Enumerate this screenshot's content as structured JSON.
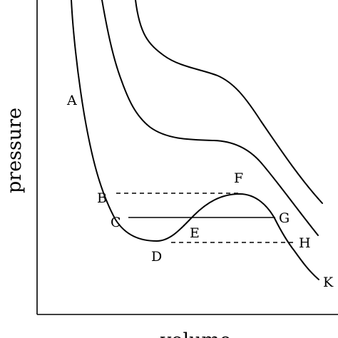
{
  "axes": {
    "ylabel": "pressure",
    "xlabel": "volume"
  },
  "point_labels": {
    "A": "A",
    "B": "B",
    "C": "C",
    "D": "D",
    "E": "E",
    "F": "F",
    "G": "G",
    "H": "H",
    "K": "K"
  },
  "isotherms": [
    {
      "curve": "upper",
      "style": "solid"
    },
    {
      "curve": "middle",
      "style": "solid"
    },
    {
      "curve": "lower",
      "style": "solid",
      "points": [
        "A",
        "C",
        "D",
        "E",
        "F",
        "G",
        "H",
        "K"
      ]
    }
  ],
  "tie_lines": [
    {
      "from": "B",
      "to": "F",
      "style": "dashed"
    },
    {
      "from": "C",
      "to": "G",
      "style": "solid"
    },
    {
      "from": "D",
      "to": "H",
      "style": "dashed"
    }
  ]
}
